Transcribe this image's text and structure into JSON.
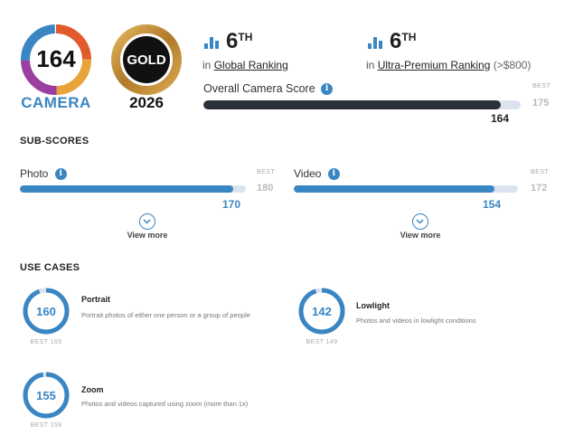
{
  "header": {
    "camera_score": "164",
    "camera_label": "CAMERA",
    "badge_label": "GOLD",
    "badge_year": "2026"
  },
  "rankings": [
    {
      "rank": "6",
      "suffix": "TH",
      "prefix": "in",
      "link": "Global Ranking",
      "extra": ""
    },
    {
      "rank": "6",
      "suffix": "TH",
      "prefix": "in",
      "link": "Ultra-Premium Ranking",
      "extra": "(>$800)"
    }
  ],
  "overall": {
    "label": "Overall Camera Score",
    "info_icon": "i",
    "best_label": "BEST",
    "best_value": "175",
    "value": "164",
    "fill_fraction": 0.937
  },
  "subscores": {
    "title": "SUB-SCORES",
    "items": [
      {
        "label": "Photo",
        "info_icon": "i",
        "best_label": "BEST",
        "best_value": "180",
        "value": "170",
        "fill_fraction": 0.944,
        "view_more": "View more"
      },
      {
        "label": "Video",
        "info_icon": "i",
        "best_label": "BEST",
        "best_value": "172",
        "value": "154",
        "fill_fraction": 0.895,
        "view_more": "View more"
      }
    ]
  },
  "use_cases": {
    "title": "USE CASES",
    "items": [
      {
        "score": "160",
        "best": "BEST 169",
        "fraction": 0.947,
        "title": "Portrait",
        "desc": "Portrait photos of either one person or a group of people"
      },
      {
        "score": "142",
        "best": "BEST 149",
        "fraction": 0.953,
        "title": "Lowlight",
        "desc": "Photos and videos in lowlight conditions"
      },
      {
        "score": "155",
        "best": "BEST 159",
        "fraction": 0.975,
        "title": "Zoom",
        "desc": "Photos and videos captured using zoom (more than 1x)"
      }
    ]
  },
  "colors": {
    "accent": "#3a86c3",
    "dark_bar": "#2b2f3a",
    "track": "#dde3ee",
    "gold": "#c8953a"
  },
  "icons": [
    "ranking-bars-icon",
    "info-icon",
    "chevron-down-icon"
  ]
}
